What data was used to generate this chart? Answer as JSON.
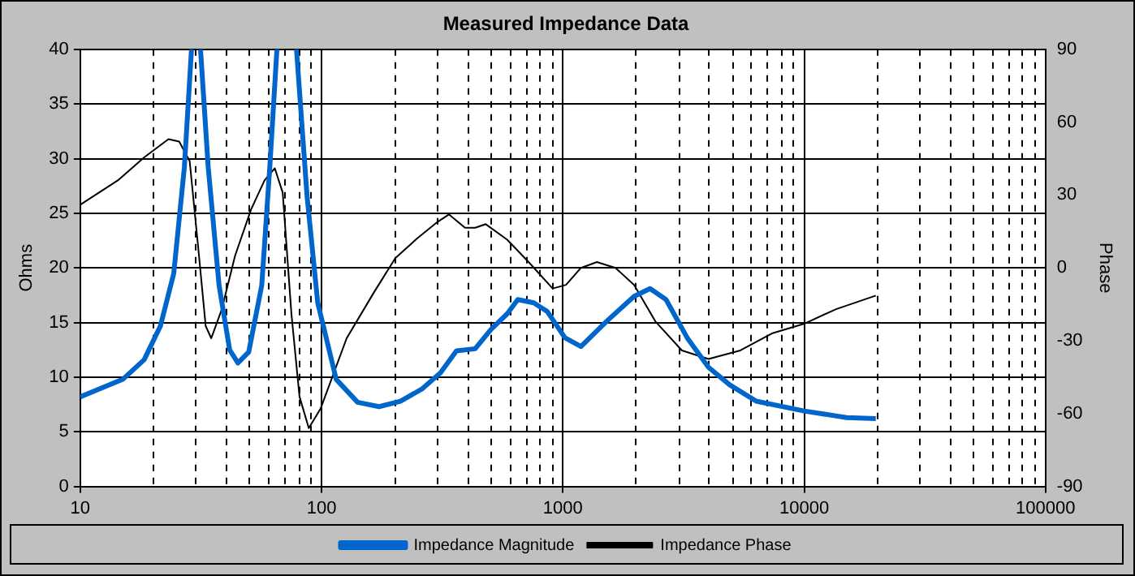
{
  "chart_data": {
    "type": "line",
    "title": "Measured Impedance Data",
    "ylabel": "Ohms",
    "y2label": "Phase",
    "xlim": [
      10,
      100000
    ],
    "xticks": [
      10,
      100,
      1000,
      10000,
      100000
    ],
    "ylim": [
      0,
      40
    ],
    "yticks": [
      0,
      5,
      10,
      15,
      20,
      25,
      30,
      35,
      40
    ],
    "y2lim": [
      -90,
      90
    ],
    "y2ticks": [
      -90,
      -60,
      -30,
      0,
      30,
      60,
      90
    ],
    "log": "x",
    "grid": true,
    "legend": "bottom",
    "marker": "none",
    "series": [
      {
        "name": "Impedance Magnitude",
        "color": "#0066cc",
        "x": [
          10,
          15,
          18.4,
          21.5,
          24.4,
          27,
          28.9,
          30,
          31.5,
          33.9,
          37.6,
          41.6,
          45,
          49.9,
          56.5,
          61,
          65.3,
          72,
          78.7,
          87.1,
          96.4,
          115,
          141,
          173,
          212,
          260,
          311,
          362,
          433,
          505,
          588,
          650,
          757,
          862,
          1020,
          1188,
          1532,
          1973,
          2297,
          2675,
          3275,
          4012,
          4912,
          6325,
          10000,
          15000,
          19800
        ],
        "values": [
          8.2,
          9.8,
          11.6,
          14.7,
          19.5,
          29.2,
          40,
          null,
          40,
          29.2,
          18.4,
          12.5,
          11.3,
          12.3,
          18.4,
          29.2,
          40,
          null,
          40,
          26.5,
          16.8,
          9.8,
          7.7,
          7.3,
          7.8,
          8.9,
          10.4,
          12.4,
          12.6,
          14.4,
          15.8,
          17.1,
          16.8,
          16,
          13.6,
          12.8,
          15.2,
          17.4,
          18.1,
          17.1,
          13.6,
          10.9,
          9.3,
          7.8,
          6.9,
          6.3,
          6.2
        ]
      },
      {
        "name": "Impedance Phase",
        "color": "#000000",
        "axis": "y2",
        "x": [
          10,
          14.3,
          18.4,
          23.2,
          25.7,
          28.4,
          30.7,
          33.1,
          34.9,
          38.6,
          43.8,
          51,
          58,
          64,
          69,
          75,
          81,
          88.5,
          99,
          127,
          165,
          202,
          248,
          303,
          337,
          393,
          433,
          479,
          588,
          721,
          907,
          1030,
          1188,
          1383,
          1652,
          1973,
          2415,
          3114,
          4012,
          5436,
          7343,
          10000,
          13546,
          19800
        ],
        "values": [
          26,
          36,
          45.5,
          53,
          52,
          44,
          10,
          -24,
          -29,
          -17,
          5,
          24,
          36,
          41,
          31,
          -19,
          -53,
          -66,
          -58,
          -29,
          -10,
          4,
          12,
          19,
          22,
          16.5,
          16.5,
          18,
          11.6,
          2.4,
          -8.5,
          -7,
          0,
          2.4,
          0,
          -7,
          -22,
          -34,
          -37.5,
          -34,
          -27,
          -23,
          -17,
          -11.4
        ]
      }
    ]
  }
}
